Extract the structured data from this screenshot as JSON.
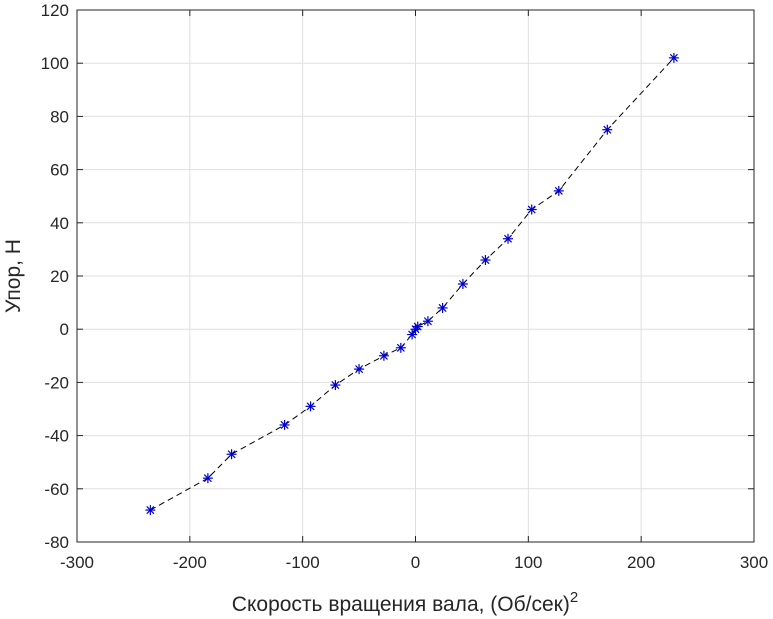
{
  "chart_data": {
    "type": "scatter",
    "xlabel": "Скорость вращения вала, (Об/сек)",
    "xlabel_superscript": "2",
    "ylabel": "Упор, Н",
    "xlim": [
      -300,
      300
    ],
    "ylim": [
      -80,
      120
    ],
    "xticks": [
      -300,
      -200,
      -100,
      0,
      100,
      200,
      300
    ],
    "yticks": [
      -80,
      -60,
      -40,
      -20,
      0,
      20,
      40,
      60,
      80,
      100,
      120
    ],
    "grid": true,
    "marker": "asterisk",
    "marker_color": "#0000cc",
    "line_style": "dashed",
    "line_color": "#000000",
    "x": [
      -235,
      -184,
      -163,
      -116,
      -93,
      -71,
      -50,
      -28,
      -13,
      -3,
      0,
      2,
      11,
      24,
      42,
      62,
      82,
      103,
      127,
      170,
      229
    ],
    "y": [
      -68,
      -56,
      -47,
      -36,
      -29,
      -21,
      -15,
      -10,
      -7,
      -2,
      0,
      1,
      3,
      8,
      17,
      26,
      34,
      45,
      52,
      75,
      102
    ]
  }
}
